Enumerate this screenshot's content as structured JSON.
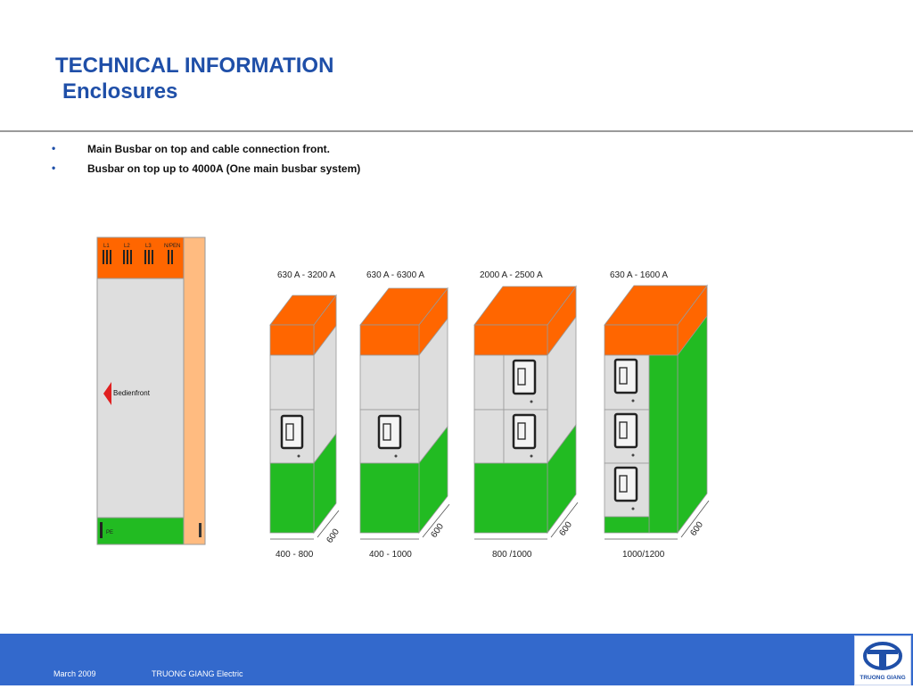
{
  "header": {
    "title": "TECHNICAL INFORMATION",
    "subtitle": "Enclosures"
  },
  "bullets": [
    "Main Busbar on top and cable connection front.",
    "Busbar on top up to 4000A (One main busbar system)"
  ],
  "side_view": {
    "phases": [
      "L1",
      "L2",
      "L3",
      "N/PEN"
    ],
    "front_label": "Bedienfront",
    "pe_label": "PE"
  },
  "cabinets": [
    {
      "rating": "630 A - 3200 A",
      "width": "400 - 800",
      "depth": "600"
    },
    {
      "rating": "630 A - 6300 A",
      "width": "400 - 1000",
      "depth": "600"
    },
    {
      "rating": "2000 A - 2500 A",
      "width": "800 /1000",
      "depth": "600"
    },
    {
      "rating": "630 A - 1600 A",
      "width": "1000/1200",
      "depth": "600"
    }
  ],
  "footer": {
    "date": "March 2009",
    "company": "TRUONG GIANG Electric",
    "logo_text": "TRUONG GIANG"
  },
  "colors": {
    "title": "#1f4fa8",
    "busbar_orange": "#ff6600",
    "green": "#22bb22",
    "grey_panel": "#dcdcdc",
    "footer_blue": "#3369cc"
  }
}
